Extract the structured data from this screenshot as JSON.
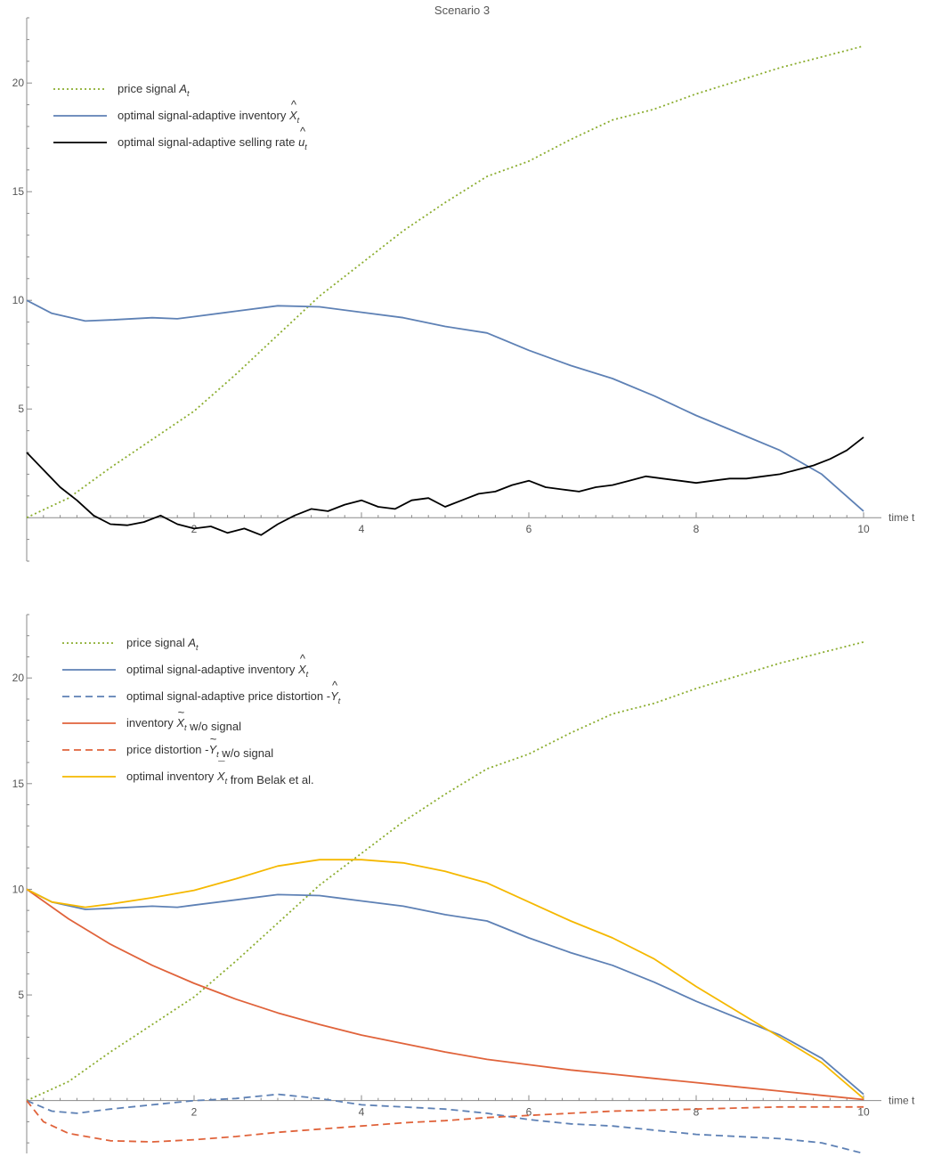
{
  "title": "Scenario 3",
  "charts": [
    {
      "type": "line",
      "xlabel": "time t",
      "xlim": [
        0,
        10
      ],
      "ylim": [
        -2,
        23
      ],
      "xticks": [
        2,
        4,
        6,
        8,
        10
      ],
      "yticks": [
        5,
        10,
        15,
        20
      ],
      "legend_position": "top-left",
      "series": [
        {
          "name": "price signal",
          "sub": "t",
          "sym": "A",
          "mark": "",
          "color": "#8bad2f",
          "dash": "2,3",
          "x": [
            0,
            0.5,
            1,
            1.5,
            2,
            2.5,
            3,
            3.5,
            4,
            4.5,
            5,
            5.5,
            6,
            6.5,
            7,
            7.5,
            8,
            8.5,
            9,
            9.5,
            10
          ],
          "y": [
            0,
            0.9,
            2.3,
            3.6,
            4.9,
            6.6,
            8.4,
            10.2,
            11.7,
            13.2,
            14.5,
            15.7,
            16.4,
            17.4,
            18.3,
            18.8,
            19.5,
            20.1,
            20.7,
            21.2,
            21.7
          ]
        },
        {
          "name": "optimal signal-adaptive inventory",
          "sub": "t",
          "sym": "X",
          "mark": "hat",
          "color": "#5e81b5",
          "dash": "",
          "x": [
            0,
            0.3,
            0.7,
            1,
            1.5,
            1.8,
            2,
            2.5,
            3,
            3.5,
            4,
            4.5,
            5,
            5.5,
            6,
            6.5,
            7,
            7.5,
            8,
            8.5,
            9,
            9.5,
            10
          ],
          "y": [
            10,
            9.4,
            9.05,
            9.1,
            9.2,
            9.15,
            9.25,
            9.5,
            9.75,
            9.7,
            9.45,
            9.2,
            8.8,
            8.5,
            7.7,
            7.0,
            6.4,
            5.6,
            4.7,
            3.9,
            3.1,
            2.0,
            0.3
          ]
        },
        {
          "name": "optimal signal-adaptive selling rate",
          "sub": "t",
          "sym": "u",
          "mark": "hat",
          "color": "#000000",
          "dash": "",
          "x": [
            0,
            0.2,
            0.4,
            0.6,
            0.8,
            1,
            1.2,
            1.4,
            1.6,
            1.8,
            2,
            2.2,
            2.4,
            2.6,
            2.8,
            3,
            3.2,
            3.4,
            3.6,
            3.8,
            4,
            4.2,
            4.4,
            4.6,
            4.8,
            5,
            5.2,
            5.4,
            5.6,
            5.8,
            6,
            6.2,
            6.4,
            6.6,
            6.8,
            7,
            7.2,
            7.4,
            7.6,
            7.8,
            8,
            8.2,
            8.4,
            8.6,
            8.8,
            9,
            9.2,
            9.4,
            9.6,
            9.8,
            10
          ],
          "y": [
            3.0,
            2.2,
            1.4,
            0.8,
            0.1,
            -0.3,
            -0.35,
            -0.2,
            0.1,
            -0.3,
            -0.5,
            -0.4,
            -0.7,
            -0.5,
            -0.8,
            -0.3,
            0.1,
            0.4,
            0.3,
            0.6,
            0.8,
            0.5,
            0.4,
            0.8,
            0.9,
            0.5,
            0.8,
            1.1,
            1.2,
            1.5,
            1.7,
            1.4,
            1.3,
            1.2,
            1.4,
            1.5,
            1.7,
            1.9,
            1.8,
            1.7,
            1.6,
            1.7,
            1.8,
            1.8,
            1.9,
            2.0,
            2.2,
            2.4,
            2.7,
            3.1,
            3.7
          ]
        }
      ]
    },
    {
      "type": "line",
      "xlabel": "time t",
      "xlim": [
        0,
        10
      ],
      "ylim": [
        -2.5,
        23
      ],
      "xticks": [
        2,
        4,
        6,
        8,
        10
      ],
      "yticks": [
        5,
        10,
        15,
        20
      ],
      "legend_position": "top-left",
      "series": [
        {
          "name": "price signal",
          "sub": "t",
          "sym": "A",
          "mark": "",
          "color": "#8bad2f",
          "dash": "2,3",
          "x": [
            0,
            0.5,
            1,
            1.5,
            2,
            2.5,
            3,
            3.5,
            4,
            4.5,
            5,
            5.5,
            6,
            6.5,
            7,
            7.5,
            8,
            8.5,
            9,
            9.5,
            10
          ],
          "y": [
            0,
            0.9,
            2.3,
            3.6,
            4.9,
            6.6,
            8.4,
            10.2,
            11.7,
            13.2,
            14.5,
            15.7,
            16.4,
            17.4,
            18.3,
            18.8,
            19.5,
            20.1,
            20.7,
            21.2,
            21.7
          ]
        },
        {
          "name": "optimal signal-adaptive inventory",
          "sub": "t",
          "sym": "X",
          "mark": "hat",
          "color": "#5e81b5",
          "dash": "",
          "x": [
            0,
            0.3,
            0.7,
            1,
            1.5,
            1.8,
            2,
            2.5,
            3,
            3.5,
            4,
            4.5,
            5,
            5.5,
            6,
            6.5,
            7,
            7.5,
            8,
            8.5,
            9,
            9.5,
            10
          ],
          "y": [
            10,
            9.4,
            9.05,
            9.1,
            9.2,
            9.15,
            9.25,
            9.5,
            9.75,
            9.7,
            9.45,
            9.2,
            8.8,
            8.5,
            7.7,
            7.0,
            6.4,
            5.6,
            4.7,
            3.9,
            3.1,
            2.0,
            0.3
          ]
        },
        {
          "name": "optimal signal-adaptive price distortion",
          "sub": "t",
          "sym": "Y",
          "mark": "hat",
          "prefix": "-",
          "color": "#5e81b5",
          "dash": "8,5",
          "x": [
            0,
            0.3,
            0.6,
            1,
            1.5,
            2,
            2.5,
            3,
            3.5,
            4,
            4.5,
            5,
            5.5,
            6,
            6.5,
            7,
            7.5,
            8,
            8.5,
            9,
            9.5,
            10
          ],
          "y": [
            0,
            -0.5,
            -0.6,
            -0.4,
            -0.2,
            0.0,
            0.1,
            0.3,
            0.1,
            -0.2,
            -0.3,
            -0.4,
            -0.6,
            -0.9,
            -1.1,
            -1.2,
            -1.4,
            -1.6,
            -1.7,
            -1.8,
            -2.0,
            -2.5
          ]
        },
        {
          "name": "w/o signal",
          "lead": "inventory",
          "sub": "t",
          "sym": "X",
          "mark": "tilde",
          "color": "#e0633b",
          "dash": "",
          "x": [
            0,
            0.5,
            1,
            1.5,
            2,
            2.5,
            3,
            3.5,
            4,
            4.5,
            5,
            5.5,
            6,
            6.5,
            7,
            7.5,
            8,
            8.5,
            9,
            9.5,
            10
          ],
          "y": [
            10,
            8.6,
            7.4,
            6.4,
            5.55,
            4.8,
            4.15,
            3.6,
            3.1,
            2.7,
            2.3,
            1.95,
            1.7,
            1.45,
            1.25,
            1.05,
            0.85,
            0.65,
            0.45,
            0.25,
            0.05
          ]
        },
        {
          "name": "w/o signal",
          "lead": "price distortion",
          "sub": "t",
          "sym": "Y",
          "mark": "tilde",
          "prefix": "-",
          "color": "#e0633b",
          "dash": "8,5",
          "x": [
            0,
            0.2,
            0.5,
            1,
            1.5,
            2,
            2.5,
            3,
            3.5,
            4,
            4.5,
            5,
            5.5,
            6,
            6.5,
            7,
            7.5,
            8,
            8.5,
            9,
            9.5,
            10
          ],
          "y": [
            0,
            -1.0,
            -1.55,
            -1.9,
            -1.95,
            -1.85,
            -1.7,
            -1.5,
            -1.35,
            -1.2,
            -1.05,
            -0.95,
            -0.8,
            -0.7,
            -0.6,
            -0.5,
            -0.45,
            -0.4,
            -0.35,
            -0.3,
            -0.3,
            -0.3
          ]
        },
        {
          "name": "from Belak et al.",
          "lead": "optimal inventory",
          "sub": "t",
          "sym": "X",
          "mark": "bar",
          "color": "#f5b800",
          "dash": "",
          "x": [
            0,
            0.3,
            0.7,
            1,
            1.5,
            2,
            2.5,
            3,
            3.5,
            4,
            4.5,
            5,
            5.5,
            6,
            6.5,
            7,
            7.5,
            8,
            8.5,
            9,
            9.5,
            10
          ],
          "y": [
            10,
            9.4,
            9.15,
            9.3,
            9.6,
            9.95,
            10.5,
            11.1,
            11.4,
            11.4,
            11.25,
            10.85,
            10.3,
            9.4,
            8.5,
            7.7,
            6.7,
            5.4,
            4.2,
            3.0,
            1.8,
            0.1
          ]
        }
      ]
    }
  ]
}
